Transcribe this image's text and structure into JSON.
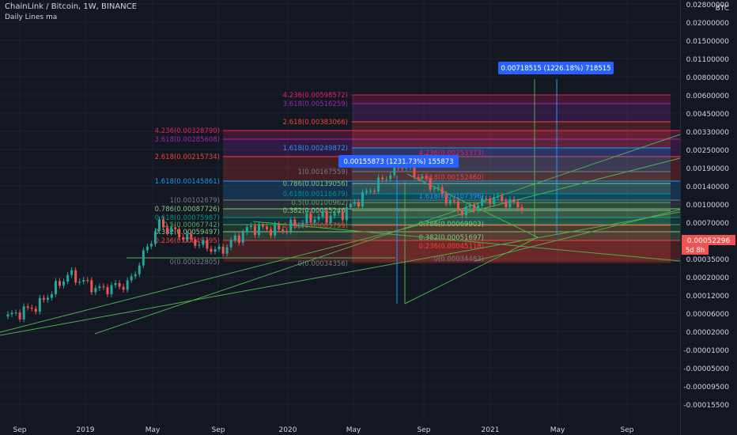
{
  "header": {
    "symbol_line": "ChainLink / Bitcoin, 1W, BINANCE",
    "indicator": "Daily Lines ma",
    "currency": "BTC"
  },
  "colors": {
    "bg": "#131722",
    "text": "#d1d4dc",
    "grid": "#1e222d",
    "up": "#26a69a",
    "down": "#ef5350",
    "green_line": "#4caf50",
    "blue_label": "#2962ff"
  },
  "chart_data": {
    "type": "candlestick",
    "title": "ChainLink / Bitcoin, 1W, BINANCE",
    "y_scale": "log",
    "ylabel": "BTC",
    "y_ticks": [
      "0.02800000",
      "0.02000000",
      "0.01500000",
      "0.01100000",
      "0.00800000",
      "0.00600000",
      "0.00450000",
      "0.00330000",
      "0.00250000",
      "0.00190000",
      "0.00140000",
      "0.00100000",
      "0.00070000",
      "0.00050000",
      "0.00035000",
      "0.00020000",
      "0.00012000",
      "0.00006000",
      "0.00002000",
      "-0.00001000",
      "-0.00005000",
      "-0.00009500",
      "-0.00015500"
    ],
    "x_ticks": [
      "Sep",
      "2019",
      "May",
      "Sep",
      "2020",
      "May",
      "Sep",
      "2021",
      "May",
      "Sep"
    ],
    "last_price": "0.00052296",
    "countdown": "5d 8h",
    "series": [
      {
        "date": "2018-09",
        "close": 3e-05
      },
      {
        "date": "2018-11",
        "close": 4e-05
      },
      {
        "date": "2019-01",
        "close": 9e-05
      },
      {
        "date": "2019-03",
        "close": 6e-05
      },
      {
        "date": "2019-05",
        "close": 7e-05
      },
      {
        "date": "2019-06",
        "close": 0.00033
      },
      {
        "date": "2019-07",
        "close": 0.00022
      },
      {
        "date": "2019-09",
        "close": 0.00016
      },
      {
        "date": "2019-11",
        "close": 0.0003
      },
      {
        "date": "2020-01",
        "close": 0.00028
      },
      {
        "date": "2020-03",
        "close": 0.00038
      },
      {
        "date": "2020-05",
        "close": 0.00042
      },
      {
        "date": "2020-07",
        "close": 0.0008
      },
      {
        "date": "2020-08",
        "close": 0.00155
      },
      {
        "date": "2020-10",
        "close": 0.0009
      },
      {
        "date": "2020-12",
        "close": 0.00045
      },
      {
        "date": "2021-02",
        "close": 0.00065
      },
      {
        "date": "2021-03",
        "close": 0.00052
      }
    ],
    "fib_left": [
      {
        "label": "4.236(0.00328790)",
        "color": "#e91e63"
      },
      {
        "label": "3.618(0.00285608)",
        "color": "#9c27b0"
      },
      {
        "label": "2.618(0.00215734)",
        "color": "#f44336"
      },
      {
        "label": "1.618(0.00145861)",
        "color": "#2196f3"
      },
      {
        "label": "1(0.00102679)",
        "color": "#787b86"
      },
      {
        "label": "0.786(0.00087726)",
        "color": "#81c784"
      },
      {
        "label": "0.618(0.00075987)",
        "color": "#009688"
      },
      {
        "label": "0.5(0.00067742)",
        "color": "#4caf50"
      },
      {
        "label": "0.382(0.00059497)",
        "color": "#81c784"
      },
      {
        "label": "0.236(0.00049295)",
        "color": "#f44336"
      },
      {
        "label": "0(0.00032805)",
        "color": "#787b86"
      }
    ],
    "fib_right": [
      {
        "label": "4.236(0.00598572)",
        "color": "#e91e63"
      },
      {
        "label": "3.618(0.00516259)",
        "color": "#9c27b0"
      },
      {
        "label": "2.618(0.00383066)",
        "color": "#f44336"
      },
      {
        "label": "1.618(0.00249872)",
        "color": "#2196f3"
      },
      {
        "label": "1(0.00167559)",
        "color": "#787b86"
      },
      {
        "label": "0.786(0.00139056)",
        "color": "#81c784"
      },
      {
        "label": "0.618(0.00116679)",
        "color": "#009688"
      },
      {
        "label": "0.5(0.00100962)",
        "color": "#4caf50"
      },
      {
        "label": "0.382(0.00085246)",
        "color": "#81c784"
      },
      {
        "label": "0.236(0.00065799)",
        "color": "#f44336"
      },
      {
        "label": "0(0.00034356)",
        "color": "#787b86"
      }
    ],
    "fib_small": [
      {
        "label": "4.236(0.00253373)",
        "color": "#e91e63"
      },
      {
        "label": "2.618(0.00152460)",
        "color": "#f44336"
      },
      {
        "label": "1.618(0.00107396)",
        "color": "#2196f3"
      },
      {
        "label": "0.786(0.00069903)",
        "color": "#81c784"
      },
      {
        "label": "0.382(0.00051697)",
        "color": "#81c784"
      },
      {
        "label": "0.236(0.00045118)",
        "color": "#f44336"
      },
      {
        "label": "0(0.00034483)",
        "color": "#787b86"
      }
    ],
    "annotations": [
      {
        "text": "0.00155873 (1231.73%) 155873"
      },
      {
        "text": "0.00718515 (1226.18%) 718515"
      }
    ]
  }
}
